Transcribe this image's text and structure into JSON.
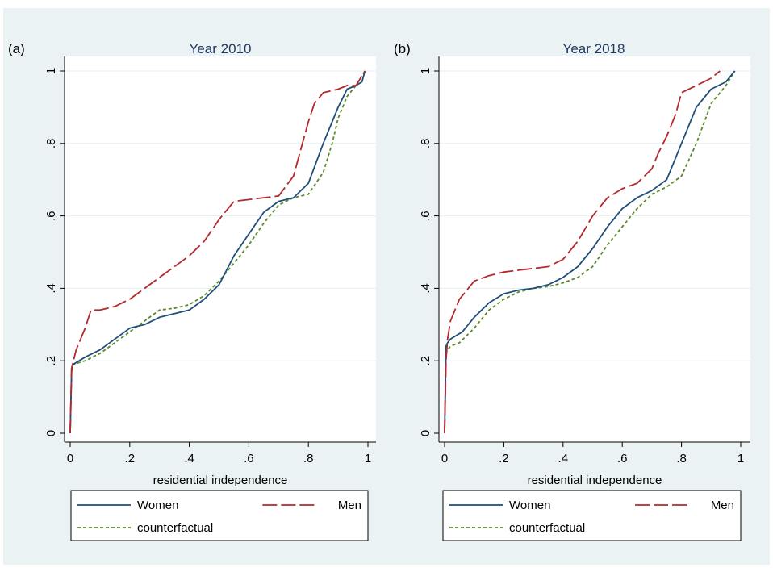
{
  "chart_data": [
    {
      "type": "line",
      "panel_label": "(a)",
      "title": "Year 2010",
      "xlabel": "residential independence",
      "ylabel": "",
      "xlim": [
        0,
        1
      ],
      "ylim": [
        0,
        1
      ],
      "xticks": [
        "0",
        ".2",
        ".4",
        ".6",
        ".8",
        "1"
      ],
      "yticks": [
        "0",
        ".2",
        ".4",
        ".6",
        ".8",
        "1"
      ],
      "grid": "horizontal",
      "legend_position": "bottom",
      "series": [
        {
          "name": "Women",
          "color": "#1f4e79",
          "dash": "solid",
          "x": [
            0,
            0.005,
            0.01,
            0.05,
            0.1,
            0.15,
            0.2,
            0.25,
            0.3,
            0.35,
            0.4,
            0.45,
            0.5,
            0.55,
            0.6,
            0.65,
            0.7,
            0.75,
            0.8,
            0.85,
            0.9,
            0.93,
            0.96,
            0.98,
            0.99
          ],
          "y": [
            0,
            0.18,
            0.19,
            0.21,
            0.23,
            0.26,
            0.29,
            0.3,
            0.32,
            0.33,
            0.34,
            0.37,
            0.41,
            0.49,
            0.55,
            0.61,
            0.64,
            0.65,
            0.69,
            0.8,
            0.9,
            0.95,
            0.96,
            0.97,
            1.0
          ]
        },
        {
          "name": "Men",
          "color": "#b5282e",
          "dash": "long-dash",
          "x": [
            0,
            0.005,
            0.02,
            0.05,
            0.07,
            0.1,
            0.15,
            0.2,
            0.25,
            0.3,
            0.35,
            0.4,
            0.45,
            0.5,
            0.55,
            0.6,
            0.65,
            0.7,
            0.75,
            0.78,
            0.8,
            0.82,
            0.85,
            0.9,
            0.93,
            0.96,
            0.99
          ],
          "y": [
            0,
            0.18,
            0.23,
            0.29,
            0.34,
            0.34,
            0.35,
            0.37,
            0.4,
            0.43,
            0.46,
            0.49,
            0.53,
            0.59,
            0.64,
            0.645,
            0.65,
            0.655,
            0.71,
            0.8,
            0.86,
            0.91,
            0.94,
            0.95,
            0.96,
            0.96,
            1.0
          ]
        },
        {
          "name": "counterfactual",
          "color": "#5a8a2a",
          "dash": "short-dash",
          "x": [
            0,
            0.005,
            0.01,
            0.05,
            0.1,
            0.15,
            0.2,
            0.25,
            0.3,
            0.35,
            0.4,
            0.45,
            0.5,
            0.55,
            0.6,
            0.65,
            0.7,
            0.75,
            0.8,
            0.85,
            0.88,
            0.9,
            0.93,
            0.96,
            0.99
          ],
          "y": [
            0,
            0.17,
            0.19,
            0.2,
            0.22,
            0.25,
            0.28,
            0.31,
            0.34,
            0.345,
            0.355,
            0.38,
            0.42,
            0.47,
            0.52,
            0.58,
            0.63,
            0.65,
            0.66,
            0.72,
            0.8,
            0.87,
            0.93,
            0.96,
            1.0
          ]
        }
      ]
    },
    {
      "type": "line",
      "panel_label": "(b)",
      "title": "Year 2018",
      "xlabel": "residential independence",
      "ylabel": "",
      "xlim": [
        0,
        1
      ],
      "ylim": [
        0,
        1
      ],
      "xticks": [
        "0",
        ".2",
        ".4",
        ".6",
        ".8",
        "1"
      ],
      "yticks": [
        "0",
        ".2",
        ".4",
        ".6",
        ".8",
        "1"
      ],
      "grid": "horizontal",
      "legend_position": "bottom",
      "series": [
        {
          "name": "Women",
          "color": "#1f4e79",
          "dash": "solid",
          "x": [
            0,
            0.005,
            0.01,
            0.02,
            0.03,
            0.06,
            0.1,
            0.15,
            0.2,
            0.25,
            0.3,
            0.35,
            0.4,
            0.45,
            0.5,
            0.55,
            0.6,
            0.65,
            0.7,
            0.75,
            0.8,
            0.85,
            0.9,
            0.95,
            0.98
          ],
          "y": [
            0,
            0.24,
            0.25,
            0.26,
            0.265,
            0.28,
            0.32,
            0.36,
            0.385,
            0.395,
            0.4,
            0.41,
            0.43,
            0.46,
            0.51,
            0.57,
            0.62,
            0.65,
            0.67,
            0.7,
            0.8,
            0.9,
            0.95,
            0.97,
            1.0
          ]
        },
        {
          "name": "Men",
          "color": "#b5282e",
          "dash": "long-dash",
          "x": [
            0,
            0.005,
            0.01,
            0.02,
            0.05,
            0.1,
            0.15,
            0.2,
            0.25,
            0.3,
            0.35,
            0.4,
            0.45,
            0.5,
            0.55,
            0.6,
            0.65,
            0.7,
            0.72,
            0.75,
            0.78,
            0.8,
            0.85,
            0.9,
            0.93
          ],
          "y": [
            0,
            0.2,
            0.26,
            0.31,
            0.37,
            0.42,
            0.435,
            0.445,
            0.45,
            0.455,
            0.46,
            0.48,
            0.53,
            0.6,
            0.65,
            0.675,
            0.69,
            0.73,
            0.77,
            0.82,
            0.88,
            0.94,
            0.96,
            0.98,
            1.0
          ]
        },
        {
          "name": "counterfactual",
          "color": "#5a8a2a",
          "dash": "short-dash",
          "x": [
            0,
            0.005,
            0.01,
            0.02,
            0.05,
            0.1,
            0.15,
            0.2,
            0.25,
            0.3,
            0.35,
            0.4,
            0.45,
            0.5,
            0.55,
            0.6,
            0.65,
            0.7,
            0.75,
            0.8,
            0.85,
            0.9,
            0.95,
            0.98
          ],
          "y": [
            0,
            0.22,
            0.23,
            0.24,
            0.25,
            0.29,
            0.34,
            0.37,
            0.39,
            0.4,
            0.405,
            0.415,
            0.43,
            0.46,
            0.52,
            0.57,
            0.62,
            0.66,
            0.68,
            0.71,
            0.8,
            0.91,
            0.96,
            1.0
          ]
        }
      ]
    }
  ]
}
